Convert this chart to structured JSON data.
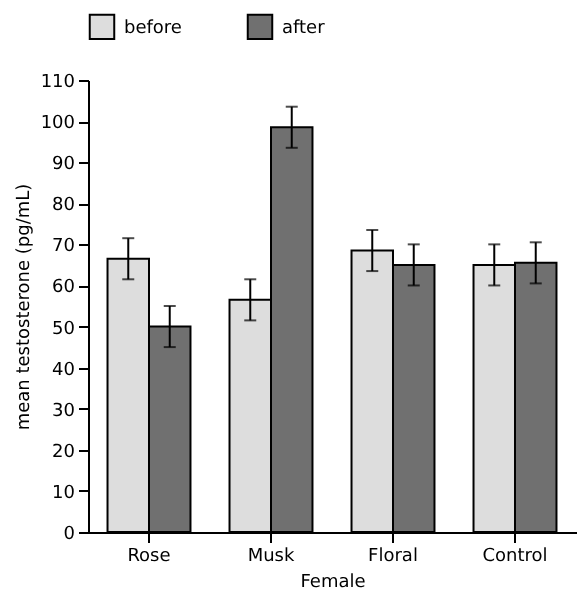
{
  "chart_data": {
    "type": "bar",
    "xlabel": "Female",
    "ylabel": "mean testosterone (pg/mL)",
    "categories": [
      "Rose",
      "Musk",
      "Floral",
      "Control"
    ],
    "series": [
      {
        "name": "before",
        "color": "#dddddd",
        "values": [
          66.5,
          56.5,
          68.5,
          65
        ],
        "errors": [
          5,
          5,
          5,
          5
        ]
      },
      {
        "name": "after",
        "color": "#707070",
        "values": [
          50,
          98.5,
          65,
          65.5
        ],
        "errors": [
          5,
          5,
          5,
          5
        ]
      }
    ],
    "ylim": [
      0,
      110
    ],
    "yticks": [
      0,
      10,
      20,
      30,
      40,
      50,
      60,
      70,
      80,
      90,
      100,
      110
    ],
    "legend": "top",
    "grid": false
  }
}
